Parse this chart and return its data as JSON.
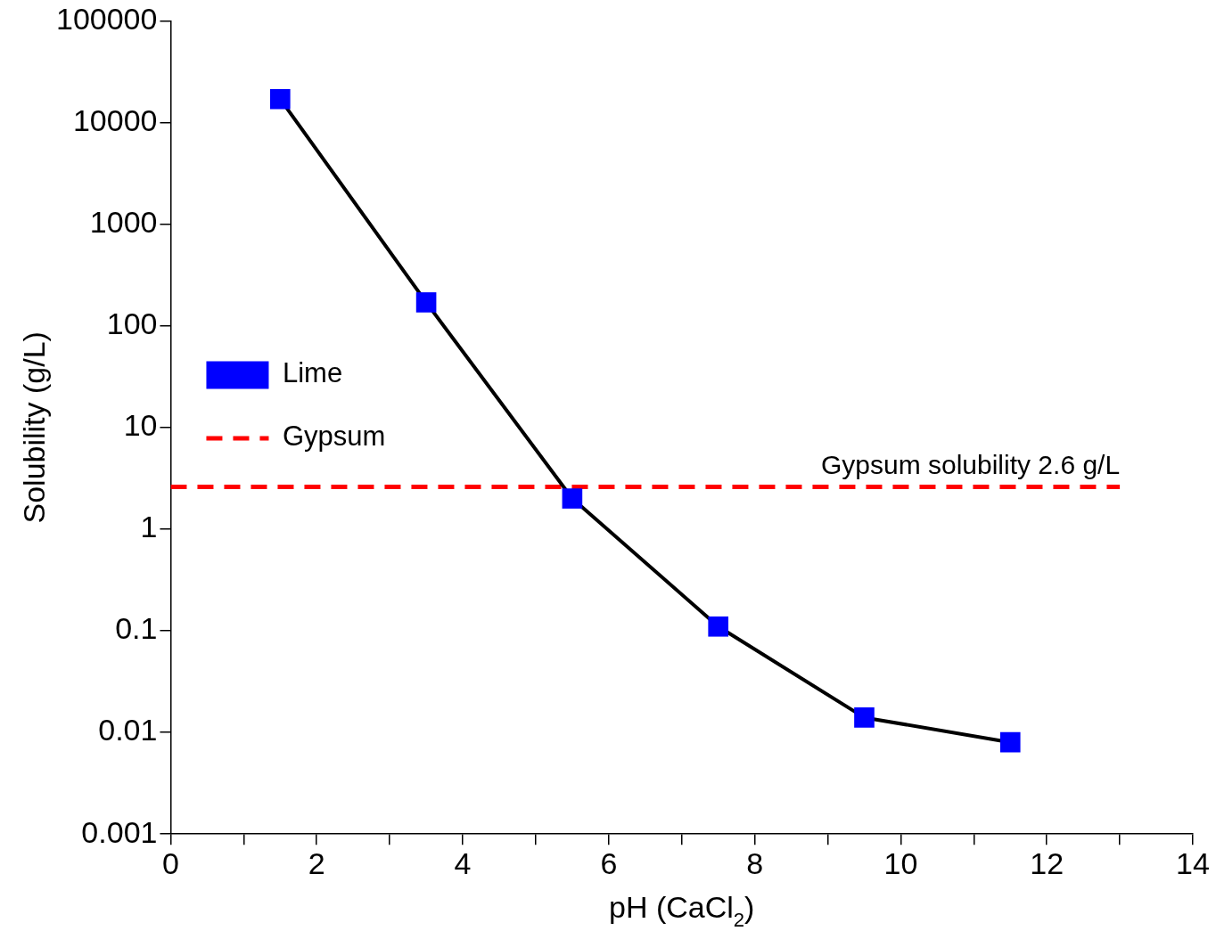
{
  "chart_data": {
    "type": "line",
    "xlabel": "pH (CaCl$_{2}$)",
    "ylabel": "Solubility (g/L)",
    "log": "y",
    "legend": "top",
    "xlim": [
      0,
      14
    ],
    "xticks": [
      0,
      {
        "value": 1,
        "label": null
      },
      2,
      {
        "value": 3,
        "label": null
      },
      4,
      {
        "value": 5,
        "label": null
      },
      6,
      {
        "value": 7,
        "label": null
      },
      8,
      {
        "value": 9,
        "label": null
      },
      10,
      {
        "value": 11,
        "label": null
      },
      12,
      {
        "value": 13,
        "label": null
      },
      14
    ],
    "ylim": [
      0.001,
      100000
    ],
    "yticks": [
      0.001,
      0.01,
      0.1,
      1,
      10,
      100,
      1000,
      10000,
      100000
    ],
    "series": [
      {
        "name": "Lime",
        "type": "line",
        "color": "#0000ff",
        "marker": "square",
        "line_style": "solid",
        "x": [
          1.5,
          3.5,
          5.5,
          7.5,
          9.5,
          11.5
        ],
        "values": [
          17000,
          170,
          2,
          0.11,
          0.014,
          0.008
        ]
      },
      {
        "name": "Gypsum",
        "type": "line",
        "color": "#ff0000",
        "marker": "none",
        "line_style": "dashed",
        "x": [
          0,
          13
        ],
        "values": [
          2.6,
          2.6
        ]
      }
    ],
    "annotations": [
      {
        "text": "Gypsum solubility 2.6 g/L",
        "x": 13,
        "y": 2.6
      }
    ]
  }
}
